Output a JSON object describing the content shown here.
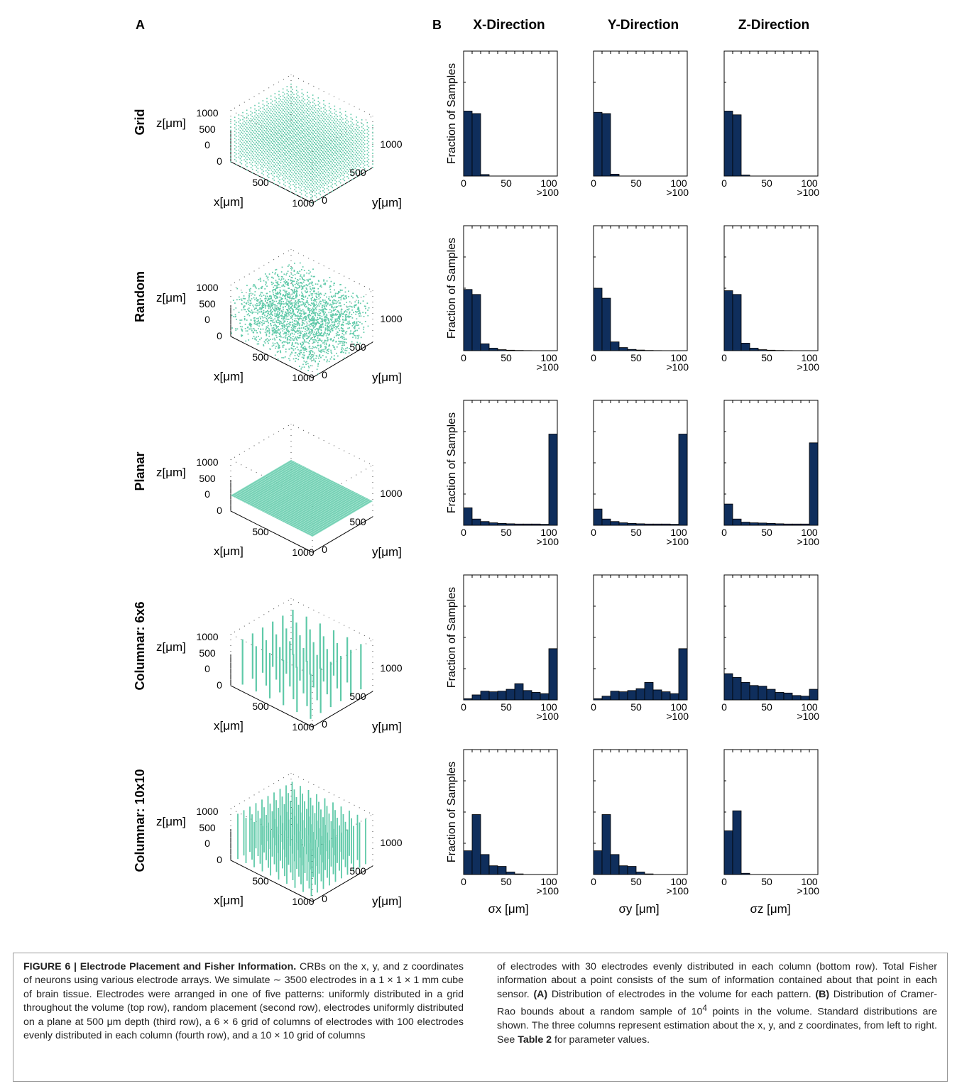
{
  "panel_labels": {
    "a": "A",
    "b": "B"
  },
  "direction_headers": [
    "X-Direction",
    "Y-Direction",
    "Z-Direction"
  ],
  "row_labels": [
    "Grid",
    "Random",
    "Planar",
    "Columnar: 6x6",
    "Columnar: 10x10"
  ],
  "axis3d": {
    "z_label": "z[μm]",
    "x_label": "x[μm]",
    "y_label": "y[μm]",
    "z_ticks": [
      "1000",
      "500",
      "0"
    ],
    "x_ticks": [
      "0",
      "500",
      "1000"
    ],
    "y_ticks": [
      "0",
      "500",
      "1000"
    ]
  },
  "hist_axis": {
    "ylabel": "Fraction of Samples",
    "x_ticks": [
      "0",
      "50",
      "100"
    ],
    "overflow_label": ">100",
    "xlabels": [
      "σx [μm]",
      "σy [μm]",
      "σz [μm]"
    ]
  },
  "colors": {
    "scatter": "#5ec9a8",
    "bars": "#0f2e5c"
  },
  "chart_data": [
    {
      "type": "bar",
      "row": "Grid",
      "direction": "X-Direction",
      "xlim": [
        0,
        110
      ],
      "bin_edges": [
        0,
        10,
        20,
        30,
        40,
        50,
        60,
        70,
        80,
        90,
        100,
        110
      ],
      "values": [
        0.52,
        0.5,
        0.012,
        0,
        0,
        0,
        0,
        0,
        0,
        0,
        0
      ],
      "ylim": [
        0,
        1
      ]
    },
    {
      "type": "bar",
      "row": "Grid",
      "direction": "Y-Direction",
      "xlim": [
        0,
        110
      ],
      "bin_edges": [
        0,
        10,
        20,
        30,
        40,
        50,
        60,
        70,
        80,
        90,
        100,
        110
      ],
      "values": [
        0.51,
        0.5,
        0.015,
        0,
        0,
        0,
        0,
        0,
        0,
        0,
        0
      ],
      "ylim": [
        0,
        1
      ]
    },
    {
      "type": "bar",
      "row": "Grid",
      "direction": "Z-Direction",
      "xlim": [
        0,
        110
      ],
      "bin_edges": [
        0,
        10,
        20,
        30,
        40,
        50,
        60,
        70,
        80,
        90,
        100,
        110
      ],
      "values": [
        0.52,
        0.49,
        0.008,
        0,
        0,
        0,
        0,
        0,
        0,
        0,
        0
      ],
      "ylim": [
        0,
        1
      ]
    },
    {
      "type": "bar",
      "row": "Random",
      "direction": "X-Direction",
      "xlim": [
        0,
        110
      ],
      "bin_edges": [
        0,
        10,
        20,
        30,
        40,
        50,
        60,
        70,
        80,
        90,
        100,
        110
      ],
      "values": [
        0.49,
        0.45,
        0.055,
        0.02,
        0.008,
        0.004,
        0.002,
        0.001,
        0,
        0,
        0
      ],
      "ylim": [
        0,
        1
      ]
    },
    {
      "type": "bar",
      "row": "Random",
      "direction": "Y-Direction",
      "xlim": [
        0,
        110
      ],
      "bin_edges": [
        0,
        10,
        20,
        30,
        40,
        50,
        60,
        70,
        80,
        90,
        100,
        110
      ],
      "values": [
        0.5,
        0.42,
        0.07,
        0.025,
        0.01,
        0.005,
        0.002,
        0.001,
        0,
        0,
        0
      ],
      "ylim": [
        0,
        1
      ]
    },
    {
      "type": "bar",
      "row": "Random",
      "direction": "Z-Direction",
      "xlim": [
        0,
        110
      ],
      "bin_edges": [
        0,
        10,
        20,
        30,
        40,
        50,
        60,
        70,
        80,
        90,
        100,
        110
      ],
      "values": [
        0.48,
        0.45,
        0.06,
        0.02,
        0.008,
        0.004,
        0.002,
        0.001,
        0,
        0,
        0
      ],
      "ylim": [
        0,
        1
      ]
    },
    {
      "type": "bar",
      "row": "Planar",
      "direction": "X-Direction",
      "xlim": [
        0,
        110
      ],
      "bin_edges": [
        0,
        10,
        20,
        30,
        40,
        50,
        60,
        70,
        80,
        90,
        100,
        110
      ],
      "values": [
        0.14,
        0.05,
        0.03,
        0.02,
        0.015,
        0.012,
        0.01,
        0.01,
        0.01,
        0.008,
        0.73
      ],
      "ylim": [
        0,
        1
      ]
    },
    {
      "type": "bar",
      "row": "Planar",
      "direction": "Y-Direction",
      "xlim": [
        0,
        110
      ],
      "bin_edges": [
        0,
        10,
        20,
        30,
        40,
        50,
        60,
        70,
        80,
        90,
        100,
        110
      ],
      "values": [
        0.13,
        0.05,
        0.03,
        0.02,
        0.015,
        0.012,
        0.01,
        0.01,
        0.01,
        0.008,
        0.73
      ],
      "ylim": [
        0,
        1
      ]
    },
    {
      "type": "bar",
      "row": "Planar",
      "direction": "Z-Direction",
      "xlim": [
        0,
        110
      ],
      "bin_edges": [
        0,
        10,
        20,
        30,
        40,
        50,
        60,
        70,
        80,
        90,
        100,
        110
      ],
      "values": [
        0.17,
        0.05,
        0.025,
        0.02,
        0.018,
        0.015,
        0.012,
        0.01,
        0.01,
        0.01,
        0.66
      ],
      "ylim": [
        0,
        1
      ]
    },
    {
      "type": "bar",
      "row": "Columnar: 6x6",
      "direction": "X-Direction",
      "xlim": [
        0,
        110
      ],
      "bin_edges": [
        0,
        10,
        20,
        30,
        40,
        50,
        60,
        70,
        80,
        90,
        100,
        110
      ],
      "values": [
        0.01,
        0.04,
        0.07,
        0.065,
        0.07,
        0.085,
        0.13,
        0.075,
        0.06,
        0.05,
        0.41
      ],
      "ylim": [
        0,
        1
      ]
    },
    {
      "type": "bar",
      "row": "Columnar: 6x6",
      "direction": "Y-Direction",
      "xlim": [
        0,
        110
      ],
      "bin_edges": [
        0,
        10,
        20,
        30,
        40,
        50,
        60,
        70,
        80,
        90,
        100,
        110
      ],
      "values": [
        0.01,
        0.03,
        0.07,
        0.065,
        0.075,
        0.09,
        0.14,
        0.08,
        0.065,
        0.05,
        0.41
      ],
      "ylim": [
        0,
        1
      ]
    },
    {
      "type": "bar",
      "row": "Columnar: 6x6",
      "direction": "Z-Direction",
      "xlim": [
        0,
        110
      ],
      "bin_edges": [
        0,
        10,
        20,
        30,
        40,
        50,
        60,
        70,
        80,
        90,
        100,
        110
      ],
      "values": [
        0.21,
        0.18,
        0.14,
        0.115,
        0.11,
        0.085,
        0.06,
        0.055,
        0.035,
        0.03,
        0.085
      ],
      "ylim": [
        0,
        1
      ]
    },
    {
      "type": "bar",
      "row": "Columnar: 10x10",
      "direction": "X-Direction",
      "xlim": [
        0,
        110
      ],
      "bin_edges": [
        0,
        10,
        20,
        30,
        40,
        50,
        60,
        70,
        80,
        90,
        100,
        110
      ],
      "values": [
        0.19,
        0.48,
        0.16,
        0.07,
        0.065,
        0.02,
        0.005,
        0,
        0,
        0,
        0
      ],
      "ylim": [
        0,
        1
      ]
    },
    {
      "type": "bar",
      "row": "Columnar: 10x10",
      "direction": "Y-Direction",
      "xlim": [
        0,
        110
      ],
      "bin_edges": [
        0,
        10,
        20,
        30,
        40,
        50,
        60,
        70,
        80,
        90,
        100,
        110
      ],
      "values": [
        0.19,
        0.48,
        0.16,
        0.07,
        0.065,
        0.02,
        0.005,
        0,
        0,
        0,
        0
      ],
      "ylim": [
        0,
        1
      ]
    },
    {
      "type": "bar",
      "row": "Columnar: 10x10",
      "direction": "Z-Direction",
      "xlim": [
        0,
        110
      ],
      "bin_edges": [
        0,
        10,
        20,
        30,
        40,
        50,
        60,
        70,
        80,
        90,
        100,
        110
      ],
      "values": [
        0.35,
        0.51,
        0.01,
        0,
        0,
        0,
        0,
        0,
        0,
        0,
        0
      ],
      "ylim": [
        0,
        1
      ]
    }
  ],
  "caption": {
    "title": "FIGURE 6 | Electrode Placement and Fisher Information.",
    "left_text": "CRBs on the x, y, and z coordinates of neurons using various electrode arrays. We simulate ∼ 3500 electrodes in a 1 × 1 × 1 mm cube of brain tissue. Electrodes were arranged in one of five patterns: uniformly distributed in a grid throughout the volume (top row), random placement (second row), electrodes uniformly distributed on a plane at 500 μm depth (third row), a 6 × 6 grid of columns of electrodes with 100 electrodes evenly distributed in each column (fourth row), and a 10 × 10 grid of columns",
    "right_text_1": "of electrodes with 30 electrodes evenly distributed in each column (bottom row). Total Fisher information about a point consists of the sum of information contained about that point in each sensor.",
    "label_a": "(A)",
    "right_text_2": "Distribution of electrodes in the volume for each pattern.",
    "label_b": "(B)",
    "right_text_3": "Distribution of Cramer-Rao bounds about a random sample of 10",
    "sup_4": "4",
    "right_text_4": "points in the volume. Standard distributions are shown. The three columns represent estimation about the x, y, and z coordinates, from left to right. See",
    "table_ref": "Table 2",
    "right_text_5": "for parameter values."
  }
}
